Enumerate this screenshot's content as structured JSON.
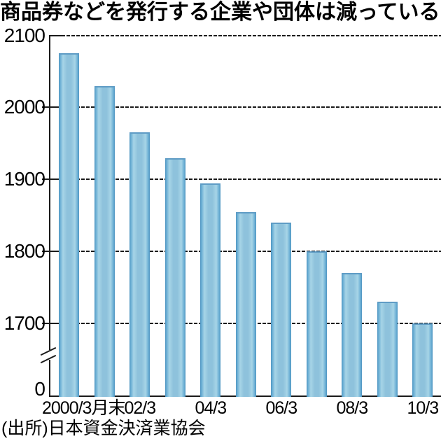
{
  "page": {
    "title": "商品券などを発行する企業や団体は減っている",
    "source": "(出所)日本資金決済業協会"
  },
  "chart_data": {
    "type": "bar",
    "title": "商品券などを発行する企業や団体は減っている",
    "source": "(出所)日本資金決済業協会",
    "x_labels": [
      "2000/3月末",
      "",
      "02/3",
      "",
      "04/3",
      "",
      "06/3",
      "",
      "08/3",
      "",
      "10/3"
    ],
    "values": [
      2075,
      2030,
      1965,
      1930,
      1895,
      1855,
      1840,
      1800,
      1770,
      1730,
      1700
    ],
    "y_ticks": [
      2100,
      2000,
      1900,
      1800,
      1700,
      0
    ],
    "y_axis": {
      "max": 2100,
      "grid_min": 1700,
      "break_between": [
        0,
        1700
      ],
      "grid_style": "dashed-horizontal"
    },
    "legend": "none",
    "colors": {
      "bar_center": "#8ec2dc",
      "bar_light": "#a7d5e7",
      "bar_edge": "#4e94c0",
      "bar_edge_inner": "#6aaed4",
      "bar_top": "#5f9cc5",
      "axis": "#1a1a1a",
      "grid": "#1a1a1a",
      "text": "#000000",
      "background": "#ffffff"
    }
  }
}
